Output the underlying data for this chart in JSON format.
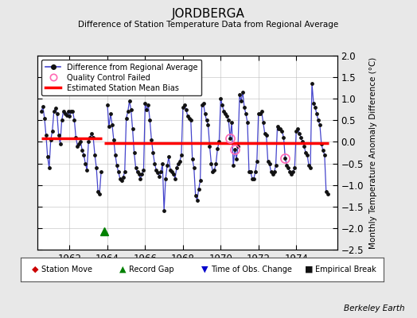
{
  "title": "JORDBERGA",
  "subtitle": "Difference of Station Temperature Data from Regional Average",
  "ylabel": "Monthly Temperature Anomaly Difference (°C)",
  "xlabel_years": [
    1962,
    1964,
    1966,
    1968,
    1970,
    1972,
    1974
  ],
  "ylim": [
    -2.5,
    2.0
  ],
  "background_color": "#e8e8e8",
  "plot_bg_color": "#ffffff",
  "line_color": "#4444cc",
  "dot_color": "#111111",
  "bias_color": "#ff0000",
  "segment1_x_start": 1960.5,
  "segment1_x_end": 1963.7,
  "segment1_bias": 0.09,
  "segment2_x_start": 1963.85,
  "segment2_x_end": 1975.7,
  "segment2_bias": -0.02,
  "record_gap_x": 1963.85,
  "record_gap_y": -2.08,
  "quality_control_points": [
    [
      1970.5,
      0.08
    ],
    [
      1970.75,
      -0.17
    ],
    [
      1973.4,
      -0.38
    ]
  ],
  "time_series": [
    [
      1960.5,
      0.7
    ],
    [
      1960.583,
      0.82
    ],
    [
      1960.667,
      0.55
    ],
    [
      1960.75,
      0.15
    ],
    [
      1960.833,
      -0.35
    ],
    [
      1960.917,
      -0.6
    ],
    [
      1961.0,
      0.05
    ],
    [
      1961.083,
      0.25
    ],
    [
      1961.167,
      0.7
    ],
    [
      1961.25,
      0.78
    ],
    [
      1961.333,
      0.65
    ],
    [
      1961.417,
      0.15
    ],
    [
      1961.5,
      -0.05
    ],
    [
      1961.583,
      0.5
    ],
    [
      1961.667,
      0.7
    ],
    [
      1961.75,
      0.65
    ],
    [
      1961.833,
      0.62
    ],
    [
      1961.917,
      0.7
    ],
    [
      1962.0,
      0.6
    ],
    [
      1962.083,
      0.7
    ],
    [
      1962.167,
      0.7
    ],
    [
      1962.25,
      0.5
    ],
    [
      1962.333,
      0.1
    ],
    [
      1962.417,
      -0.1
    ],
    [
      1962.5,
      -0.05
    ],
    [
      1962.583,
      0.0
    ],
    [
      1962.667,
      -0.2
    ],
    [
      1962.75,
      -0.3
    ],
    [
      1962.833,
      -0.5
    ],
    [
      1962.917,
      -0.65
    ],
    [
      1963.0,
      0.0
    ],
    [
      1963.083,
      0.1
    ],
    [
      1963.167,
      0.2
    ],
    [
      1963.25,
      0.1
    ],
    [
      1963.333,
      -0.3
    ],
    [
      1963.417,
      -0.6
    ],
    [
      1963.5,
      -1.15
    ],
    [
      1963.583,
      -1.2
    ],
    [
      1963.667,
      -0.7
    ],
    [
      1964.0,
      0.85
    ],
    [
      1964.083,
      0.35
    ],
    [
      1964.167,
      0.65
    ],
    [
      1964.25,
      0.4
    ],
    [
      1964.333,
      0.05
    ],
    [
      1964.417,
      -0.3
    ],
    [
      1964.5,
      -0.55
    ],
    [
      1964.583,
      -0.7
    ],
    [
      1964.667,
      -0.85
    ],
    [
      1964.75,
      -0.9
    ],
    [
      1964.833,
      -0.82
    ],
    [
      1964.917,
      -0.7
    ],
    [
      1965.0,
      0.55
    ],
    [
      1965.083,
      0.7
    ],
    [
      1965.167,
      0.95
    ],
    [
      1965.25,
      0.75
    ],
    [
      1965.333,
      0.3
    ],
    [
      1965.417,
      -0.25
    ],
    [
      1965.5,
      -0.6
    ],
    [
      1965.583,
      -0.7
    ],
    [
      1965.667,
      -0.75
    ],
    [
      1965.75,
      -0.85
    ],
    [
      1965.833,
      -0.75
    ],
    [
      1965.917,
      -0.65
    ],
    [
      1966.0,
      0.9
    ],
    [
      1966.083,
      0.75
    ],
    [
      1966.167,
      0.85
    ],
    [
      1966.25,
      0.5
    ],
    [
      1966.333,
      0.05
    ],
    [
      1966.417,
      -0.25
    ],
    [
      1966.5,
      -0.5
    ],
    [
      1966.583,
      -0.65
    ],
    [
      1966.667,
      -0.72
    ],
    [
      1966.75,
      -0.8
    ],
    [
      1966.833,
      -0.7
    ],
    [
      1966.917,
      -0.5
    ],
    [
      1967.0,
      -1.6
    ],
    [
      1967.083,
      -0.85
    ],
    [
      1967.167,
      -0.55
    ],
    [
      1967.25,
      -0.35
    ],
    [
      1967.333,
      -0.65
    ],
    [
      1967.417,
      -0.7
    ],
    [
      1967.5,
      -0.75
    ],
    [
      1967.583,
      -0.85
    ],
    [
      1967.667,
      -0.6
    ],
    [
      1967.75,
      -0.5
    ],
    [
      1967.833,
      -0.45
    ],
    [
      1967.917,
      -0.3
    ],
    [
      1968.0,
      0.8
    ],
    [
      1968.083,
      0.85
    ],
    [
      1968.167,
      0.75
    ],
    [
      1968.25,
      0.6
    ],
    [
      1968.333,
      0.55
    ],
    [
      1968.417,
      0.5
    ],
    [
      1968.5,
      -0.4
    ],
    [
      1968.583,
      -0.6
    ],
    [
      1968.667,
      -1.25
    ],
    [
      1968.75,
      -1.35
    ],
    [
      1968.833,
      -1.1
    ],
    [
      1968.917,
      -0.9
    ],
    [
      1969.0,
      0.85
    ],
    [
      1969.083,
      0.9
    ],
    [
      1969.167,
      0.65
    ],
    [
      1969.25,
      0.5
    ],
    [
      1969.333,
      0.4
    ],
    [
      1969.417,
      -0.1
    ],
    [
      1969.5,
      -0.5
    ],
    [
      1969.583,
      -0.7
    ],
    [
      1969.667,
      -0.65
    ],
    [
      1969.75,
      -0.5
    ],
    [
      1969.833,
      -0.15
    ],
    [
      1969.917,
      0.0
    ],
    [
      1970.0,
      1.0
    ],
    [
      1970.083,
      0.85
    ],
    [
      1970.167,
      0.7
    ],
    [
      1970.25,
      0.65
    ],
    [
      1970.333,
      0.6
    ],
    [
      1970.417,
      0.5
    ],
    [
      1970.5,
      0.08
    ],
    [
      1970.583,
      0.45
    ],
    [
      1970.667,
      -0.55
    ],
    [
      1970.75,
      -0.17
    ],
    [
      1970.833,
      -0.4
    ],
    [
      1970.917,
      -0.1
    ],
    [
      1971.0,
      1.1
    ],
    [
      1971.083,
      0.95
    ],
    [
      1971.167,
      1.15
    ],
    [
      1971.25,
      0.8
    ],
    [
      1971.333,
      0.65
    ],
    [
      1971.417,
      0.45
    ],
    [
      1971.5,
      -0.7
    ],
    [
      1971.583,
      -0.7
    ],
    [
      1971.667,
      -0.85
    ],
    [
      1971.75,
      -0.85
    ],
    [
      1971.833,
      -0.7
    ],
    [
      1971.917,
      -0.45
    ],
    [
      1972.0,
      0.65
    ],
    [
      1972.083,
      0.65
    ],
    [
      1972.167,
      0.7
    ],
    [
      1972.25,
      0.45
    ],
    [
      1972.333,
      0.2
    ],
    [
      1972.417,
      0.15
    ],
    [
      1972.5,
      -0.45
    ],
    [
      1972.583,
      -0.5
    ],
    [
      1972.667,
      -0.7
    ],
    [
      1972.75,
      -0.75
    ],
    [
      1972.833,
      -0.7
    ],
    [
      1972.917,
      -0.55
    ],
    [
      1973.0,
      0.35
    ],
    [
      1973.083,
      0.3
    ],
    [
      1973.167,
      0.3
    ],
    [
      1973.25,
      0.25
    ],
    [
      1973.333,
      0.1
    ],
    [
      1973.417,
      -0.38
    ],
    [
      1973.5,
      -0.55
    ],
    [
      1973.583,
      -0.6
    ],
    [
      1973.667,
      -0.7
    ],
    [
      1973.75,
      -0.75
    ],
    [
      1973.833,
      -0.7
    ],
    [
      1973.917,
      -0.6
    ],
    [
      1974.0,
      0.25
    ],
    [
      1974.083,
      0.3
    ],
    [
      1974.167,
      0.2
    ],
    [
      1974.25,
      0.1
    ],
    [
      1974.333,
      0.0
    ],
    [
      1974.417,
      -0.1
    ],
    [
      1974.5,
      -0.25
    ],
    [
      1974.583,
      -0.3
    ],
    [
      1974.667,
      -0.55
    ],
    [
      1974.75,
      -0.6
    ],
    [
      1974.833,
      1.35
    ],
    [
      1974.917,
      0.9
    ],
    [
      1975.0,
      0.8
    ],
    [
      1975.083,
      0.65
    ],
    [
      1975.167,
      0.5
    ],
    [
      1975.25,
      0.4
    ],
    [
      1975.333,
      -0.05
    ],
    [
      1975.417,
      -0.2
    ],
    [
      1975.5,
      -0.3
    ],
    [
      1975.583,
      -1.15
    ],
    [
      1975.667,
      -1.2
    ]
  ],
  "berkeley_earth_text": "Berkeley Earth",
  "xlim": [
    1960.3,
    1976.2
  ]
}
